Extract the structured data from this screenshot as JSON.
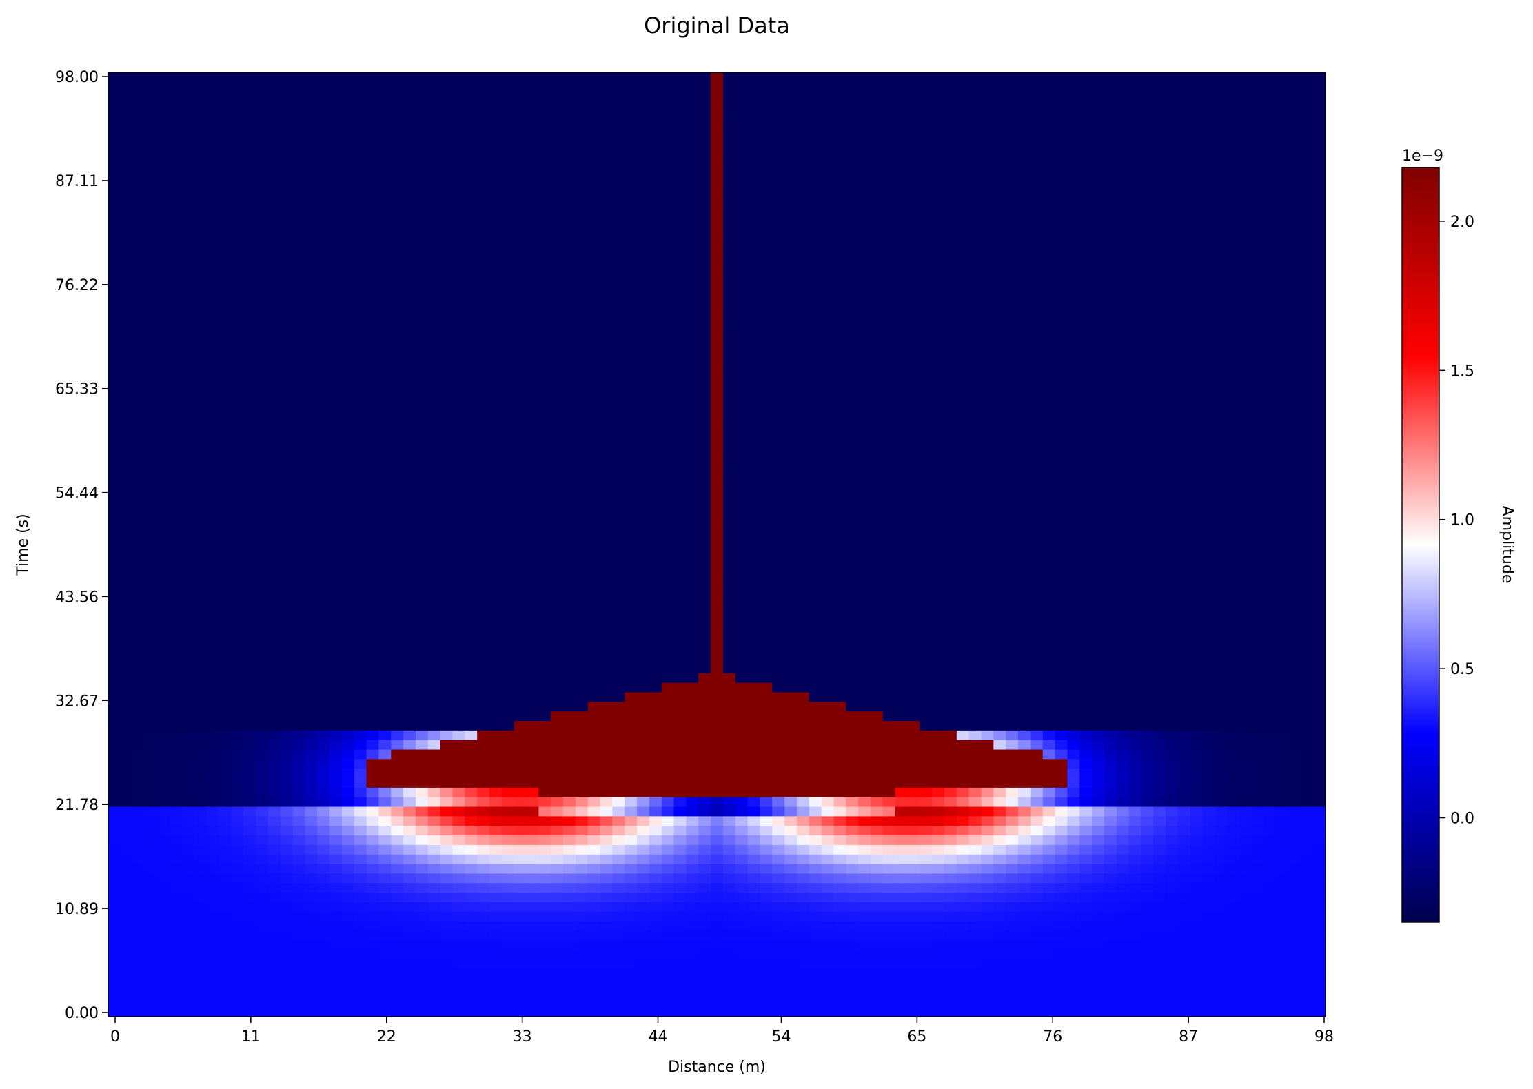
{
  "chart_data": {
    "type": "heatmap",
    "title": "Original Data",
    "xlabel": "Distance (m)",
    "ylabel": "Time (s)",
    "x_ticks": [
      "0",
      "11",
      "22",
      "33",
      "44",
      "54",
      "65",
      "76",
      "87",
      "98"
    ],
    "y_ticks": [
      "0.00",
      "10.89",
      "21.78",
      "32.67",
      "43.56",
      "54.44",
      "65.33",
      "76.22",
      "87.11",
      "98.00"
    ],
    "xlim": [
      0,
      98
    ],
    "ylim": [
      0,
      98
    ],
    "colormap": "seismic",
    "colorbar": {
      "label": "Amplitude",
      "offset_label": "1e−9",
      "tick_values": [
        0.0,
        0.5,
        1.0,
        1.5,
        2.0
      ],
      "tick_labels": [
        "0.0",
        "0.5",
        "1.0",
        "1.5",
        "2.0"
      ],
      "range": [
        -0.35,
        2.18
      ]
    },
    "grid": false,
    "features": {
      "background_amplitude_upper": -0.3,
      "background_amplitude_lower": 0.3,
      "front_center_time": 21.0,
      "front_edge_time": 22.0,
      "front_center_distance": 49,
      "vertical_line": {
        "distance": 49,
        "time_from": 35,
        "time_to": 98,
        "amplitude": 2.18
      },
      "dome": {
        "center_distance": 49,
        "half_width": 28,
        "peak_time": 35.5,
        "amplitude": 2.18
      }
    }
  }
}
